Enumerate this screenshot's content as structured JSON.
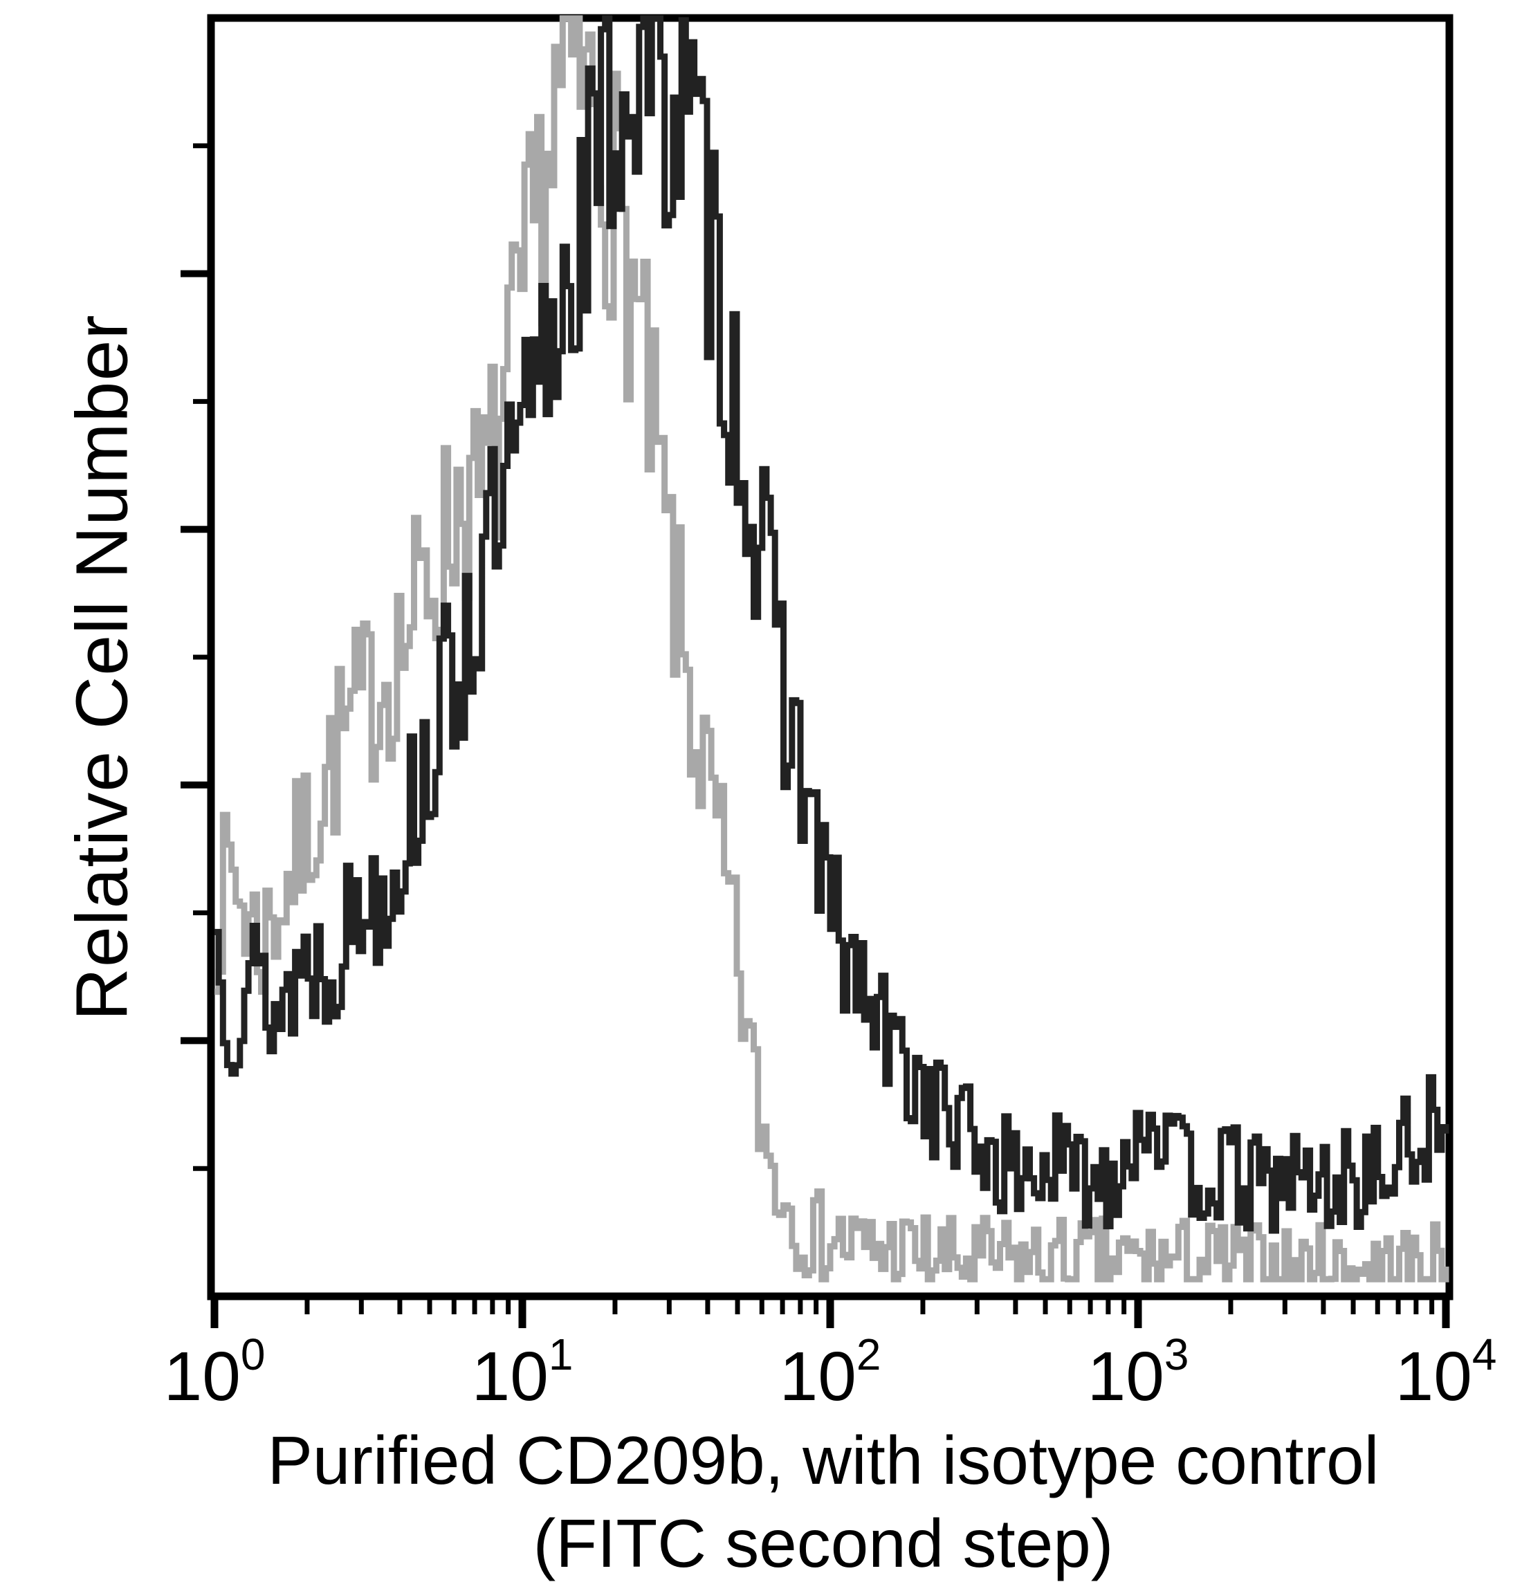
{
  "figure": {
    "kind": "flow cytometry histogram overlay",
    "background": "#ffffff",
    "frame_color": "#000000"
  },
  "chart_data": {
    "type": "line",
    "subtype": "flow-cytometry-histogram-overlay",
    "title": "",
    "xlabel_line1": "Purified CD209b, with isotype control",
    "xlabel_line2": "(FITC second step)",
    "ylabel": "Relative Cell Number",
    "x_scale": "log10",
    "x_range_log": [
      0,
      4
    ],
    "y_range": [
      0,
      100
    ],
    "y_ticks_labeled": false,
    "grid": false,
    "legend_position": "none",
    "x_tick_labels": [
      {
        "base": "10",
        "exp": "0"
      },
      {
        "base": "10",
        "exp": "1"
      },
      {
        "base": "10",
        "exp": "2"
      },
      {
        "base": "10",
        "exp": "3"
      },
      {
        "base": "10",
        "exp": "4"
      }
    ],
    "series": [
      {
        "name": "Isotype control (FITC second step)",
        "color": "#a8a8a8",
        "stroke_width": 9,
        "noise_seed": 7,
        "x_log": [
          0.0,
          0.05,
          0.1,
          0.15,
          0.2,
          0.25,
          0.3,
          0.35,
          0.4,
          0.45,
          0.5,
          0.55,
          0.6,
          0.65,
          0.7,
          0.75,
          0.8,
          0.85,
          0.9,
          0.95,
          1.0,
          1.05,
          1.1,
          1.15,
          1.2,
          1.25,
          1.3,
          1.35,
          1.4,
          1.45,
          1.5,
          1.55,
          1.6,
          1.65,
          1.7,
          1.75,
          1.8,
          1.85,
          1.9,
          1.95,
          2.0,
          2.1,
          2.2,
          2.4,
          2.6,
          2.8,
          3.0,
          3.2,
          3.4,
          3.6,
          3.8,
          4.0
        ],
        "y": [
          30,
          34,
          30,
          28,
          31,
          34,
          37,
          41,
          44,
          46,
          48,
          50,
          52,
          55,
          58,
          61,
          65,
          63,
          67,
          73,
          80,
          88,
          95,
          99,
          97,
          93,
          88,
          81,
          72,
          63,
          54,
          46,
          40,
          33,
          25,
          16,
          10,
          7,
          5,
          4,
          4,
          3,
          3,
          2,
          2,
          2,
          2,
          2,
          1.5,
          1.5,
          1.5,
          1.5
        ]
      },
      {
        "name": "Purified CD209b (FITC second step)",
        "color": "#222222",
        "stroke_width": 9,
        "noise_seed": 13,
        "x_log": [
          0.0,
          0.05,
          0.1,
          0.15,
          0.2,
          0.25,
          0.3,
          0.35,
          0.4,
          0.45,
          0.5,
          0.55,
          0.6,
          0.65,
          0.7,
          0.75,
          0.8,
          0.85,
          0.9,
          0.95,
          1.0,
          1.05,
          1.1,
          1.15,
          1.2,
          1.25,
          1.3,
          1.35,
          1.4,
          1.45,
          1.5,
          1.55,
          1.6,
          1.65,
          1.7,
          1.75,
          1.8,
          1.85,
          1.9,
          1.95,
          2.0,
          2.05,
          2.1,
          2.15,
          2.2,
          2.3,
          2.4,
          2.5,
          2.6,
          2.7,
          2.8,
          2.9,
          3.0,
          3.05,
          3.1,
          3.2,
          3.3,
          3.4,
          3.5,
          3.6,
          3.7,
          3.8,
          3.9,
          3.95,
          4.0
        ],
        "y": [
          28,
          22,
          26,
          24,
          22,
          25,
          27,
          26,
          28,
          30,
          32,
          33,
          36,
          40,
          44,
          48,
          52,
          56,
          60,
          64,
          68,
          73,
          78,
          84,
          88,
          92,
          96,
          98,
          100,
          98,
          96,
          92,
          86,
          78,
          70,
          62,
          55,
          48,
          42,
          36,
          30,
          26,
          24,
          21,
          19,
          16,
          13,
          11,
          9,
          10,
          9,
          9,
          13,
          15,
          10,
          9,
          9,
          8,
          9,
          8,
          9,
          9,
          12,
          13,
          10
        ]
      }
    ]
  }
}
